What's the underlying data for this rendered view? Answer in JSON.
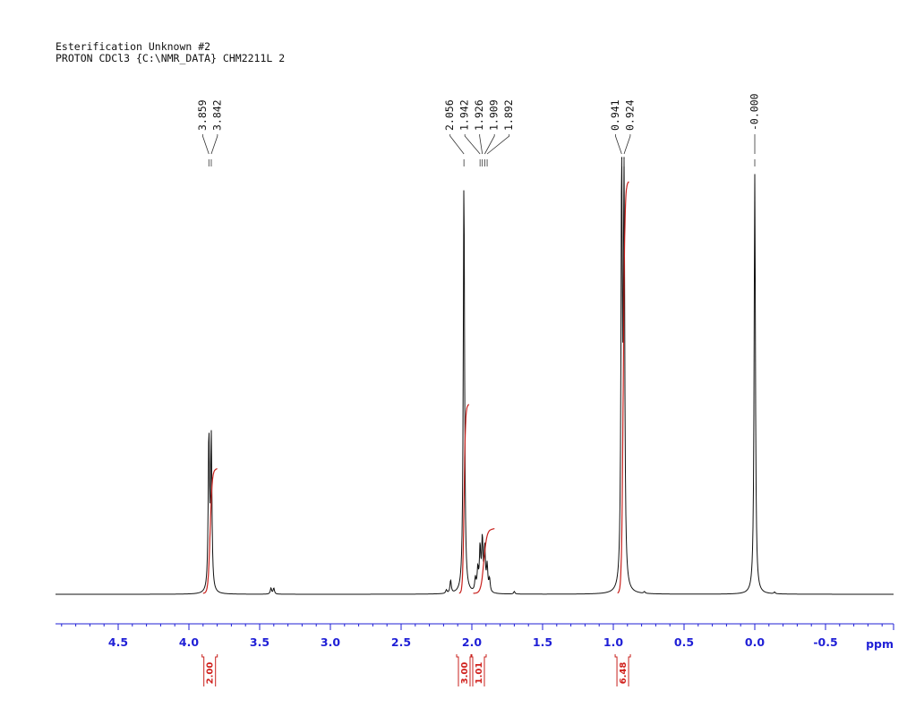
{
  "header": {
    "title": "Esterification Unknown #2",
    "subtitle": "PROTON CDCl3 {C:\\NMR_DATA} CHM2211L 2"
  },
  "chart_data": {
    "type": "line",
    "title": "Esterification Unknown #2",
    "subtitle": "PROTON CDCl3 {C:\\NMR_DATA} CHM2211L 2",
    "xlabel": "ppm",
    "xlim": [
      5.0,
      -1.0
    ],
    "x_reversed": true,
    "xticks": [
      4.5,
      4.0,
      3.5,
      3.0,
      2.5,
      2.0,
      1.5,
      1.0,
      0.5,
      0.0,
      -0.5
    ],
    "xtick_labels": [
      "4.5",
      "4.0",
      "3.5",
      "3.0",
      "2.5",
      "2.0",
      "1.5",
      "1.0",
      "0.5",
      "0.0",
      "-0.5"
    ],
    "minor_tick_step": 0.1,
    "ylim": [
      0,
      1
    ],
    "peak_labels": [
      "3.859",
      "3.842",
      "2.056",
      "1.942",
      "1.926",
      "1.909",
      "1.892",
      "0.941",
      "0.924",
      "-0.000"
    ],
    "peak_label_groups": [
      {
        "labels": [
          "3.859",
          "3.842"
        ],
        "peaks": [
          3.859,
          3.842
        ],
        "tip_y": 1.0
      },
      {
        "labels": [
          "2.056",
          "1.942",
          "1.926",
          "1.909",
          "1.892"
        ],
        "peaks": [
          2.056,
          1.942,
          1.926,
          1.909,
          1.892
        ],
        "tip_y": 1.0
      },
      {
        "labels": [
          "0.941",
          "0.924"
        ],
        "peaks": [
          0.941,
          0.924
        ],
        "tip_y": 1.0
      },
      {
        "labels": [
          "-0.000"
        ],
        "peaks": [
          0.0
        ],
        "tip_y": 1.0
      }
    ],
    "peaks": [
      {
        "ppm": 3.859,
        "height": 0.36
      },
      {
        "ppm": 3.842,
        "height": 0.35
      },
      {
        "ppm": 3.42,
        "height": 0.014
      },
      {
        "ppm": 3.4,
        "height": 0.014
      },
      {
        "ppm": 2.18,
        "height": 0.008
      },
      {
        "ppm": 2.15,
        "height": 0.03
      },
      {
        "ppm": 2.056,
        "height": 0.97
      },
      {
        "ppm": 1.975,
        "height": 0.03
      },
      {
        "ppm": 1.958,
        "height": 0.05
      },
      {
        "ppm": 1.942,
        "height": 0.1
      },
      {
        "ppm": 1.926,
        "height": 0.12
      },
      {
        "ppm": 1.909,
        "height": 0.1
      },
      {
        "ppm": 1.892,
        "height": 0.06
      },
      {
        "ppm": 1.875,
        "height": 0.03
      },
      {
        "ppm": 1.7,
        "height": 0.006
      },
      {
        "ppm": 0.941,
        "height": 0.98
      },
      {
        "ppm": 0.924,
        "height": 0.97
      },
      {
        "ppm": 0.78,
        "height": 0.004
      },
      {
        "ppm": 0.0,
        "height": 0.98
      },
      {
        "ppm": -0.14,
        "height": 0.004
      }
    ],
    "integrals": [
      {
        "from": 3.9,
        "to": 3.8,
        "value": "2.00",
        "rise": 0.29
      },
      {
        "from": 2.09,
        "to": 2.02,
        "value": "3.00",
        "rise": 0.44
      },
      {
        "from": 1.99,
        "to": 1.84,
        "value": "1.01",
        "rise": 0.15
      },
      {
        "from": 0.97,
        "to": 0.89,
        "value": "6.48",
        "rise": 0.96
      }
    ],
    "colors": {
      "spectrum": "#111111",
      "integral": "#c8201c",
      "axis": "#1f1fd6"
    }
  }
}
